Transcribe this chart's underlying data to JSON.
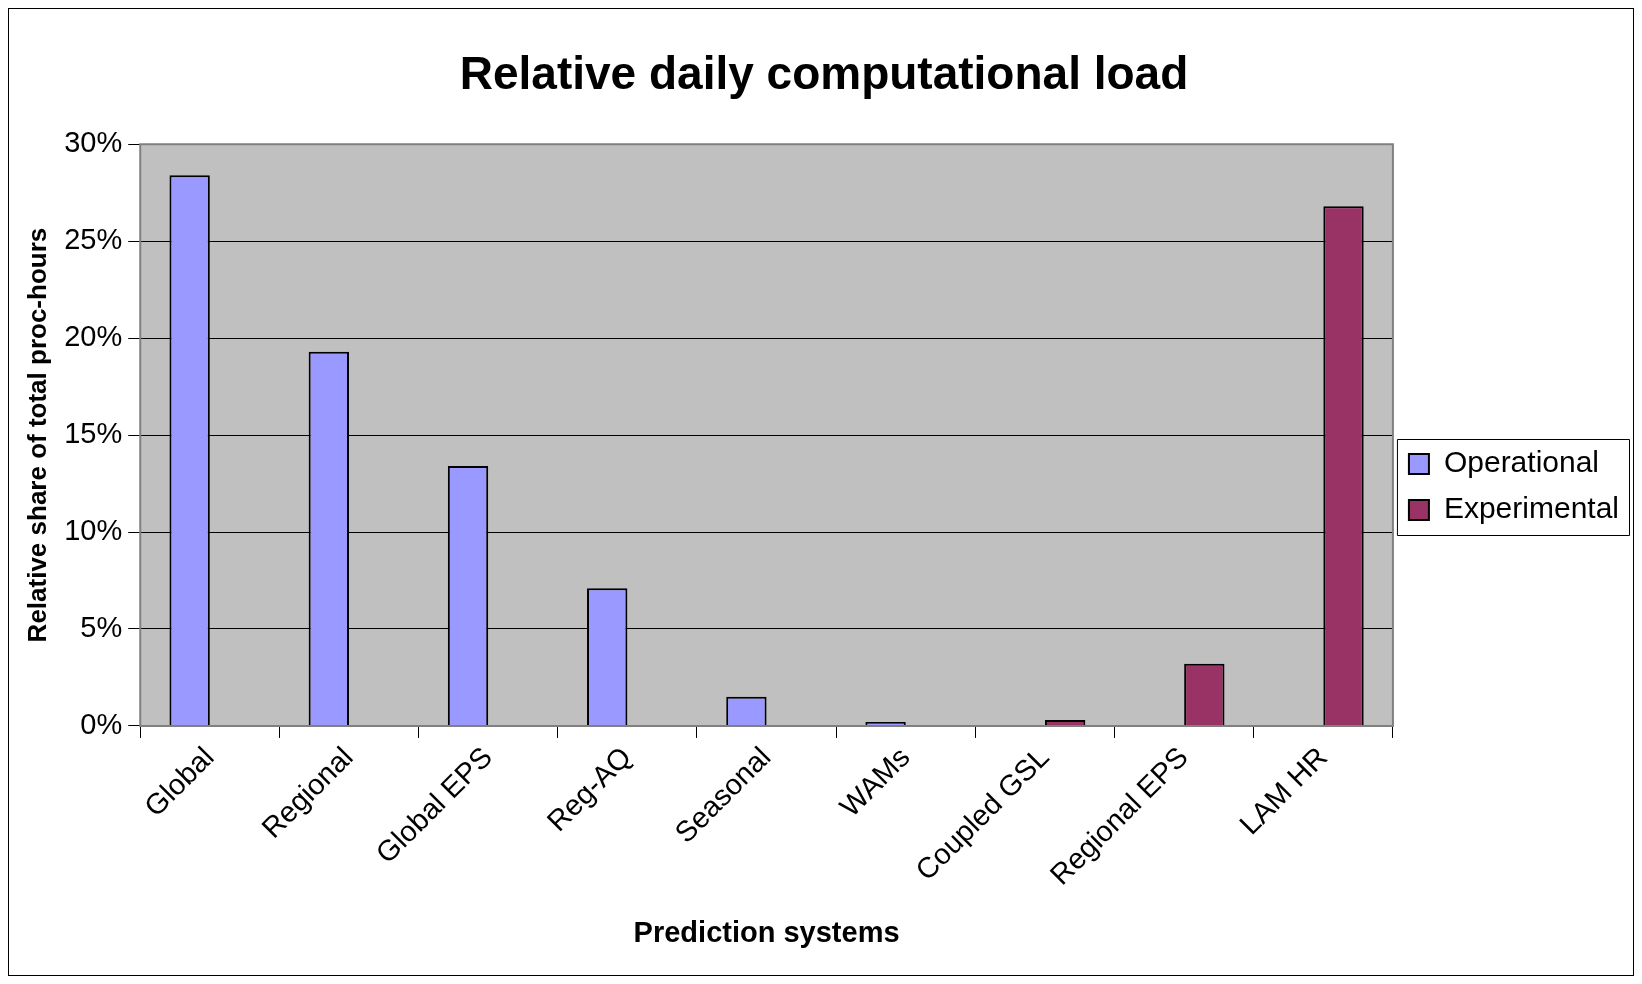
{
  "chart_data": {
    "type": "bar",
    "title": "Relative daily computational load",
    "xlabel": "Prediction systems",
    "ylabel": "Relative share of total proc-hours",
    "categories": [
      "Global",
      "Regional",
      "Global EPS",
      "Reg-AQ",
      "Seasonal",
      "WAMs",
      "Coupled GSL",
      "Regional EPS",
      "LAM HR"
    ],
    "series": [
      {
        "name": "Operational",
        "color": "#9999ff",
        "values": [
          28.4,
          19.3,
          13.4,
          7.1,
          1.5,
          0.2,
          null,
          null,
          null
        ]
      },
      {
        "name": "Experimental",
        "color": "#993366",
        "values": [
          null,
          null,
          null,
          null,
          null,
          null,
          0.3,
          3.2,
          26.8
        ]
      }
    ],
    "ylim": [
      0,
      30
    ],
    "yticks": [
      {
        "value": 0,
        "label": "0%"
      },
      {
        "value": 5,
        "label": "5%"
      },
      {
        "value": 10,
        "label": "10%"
      },
      {
        "value": 15,
        "label": "15%"
      },
      {
        "value": 20,
        "label": "20%"
      },
      {
        "value": 25,
        "label": "25%"
      },
      {
        "value": 30,
        "label": "30%"
      }
    ],
    "grid": "y",
    "legend": "right"
  }
}
